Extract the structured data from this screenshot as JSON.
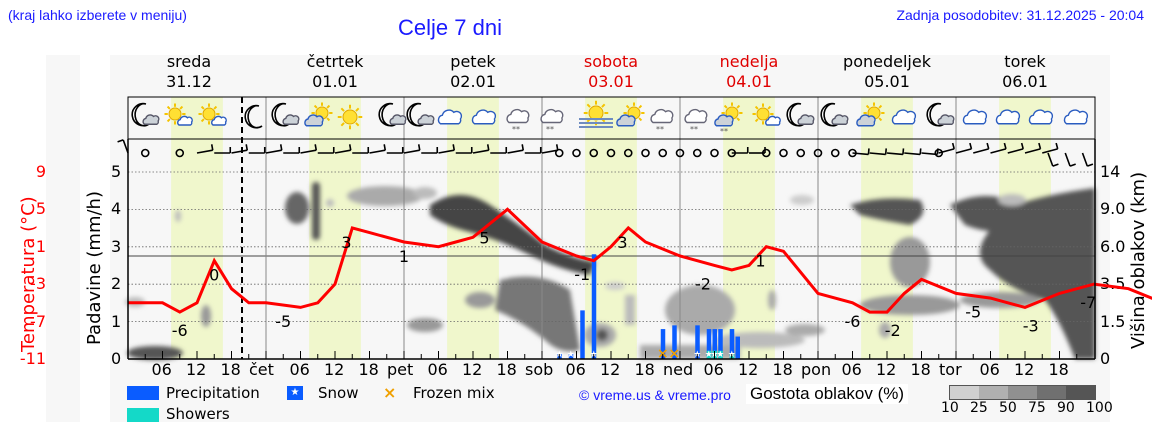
{
  "header": {
    "location_hint": "(kraj lahko izberete v meniju)",
    "title": "Celje 7 dni",
    "last_update": "Zadnja posodobitev: 31.12.2025 - 20:04"
  },
  "days": [
    {
      "name": "sreda",
      "date": "31.12",
      "weekend": false
    },
    {
      "name": "četrtek",
      "date": "01.01",
      "weekend": false
    },
    {
      "name": "petek",
      "date": "02.01",
      "weekend": false
    },
    {
      "name": "sobota",
      "date": "03.01",
      "weekend": true
    },
    {
      "name": "nedelja",
      "date": "04.01",
      "weekend": true
    },
    {
      "name": "ponedeljek",
      "date": "05.01",
      "weekend": false
    },
    {
      "name": "torek",
      "date": "06.01",
      "weekend": false
    }
  ],
  "axes": {
    "temperature_label": "Temperatura (°C)",
    "precip_label": "Padavine (mm/h)",
    "cloud_height_label": "Višina oblakov (km)",
    "temperature_ticks": [
      "9",
      "5",
      "1",
      "-3",
      "-7",
      "-11"
    ],
    "precip_ticks": [
      "5",
      "4",
      "3",
      "2",
      "1",
      "0"
    ],
    "cloud_height_ticks": [
      "14",
      "9.0",
      "6.0",
      "3.5",
      "1.5",
      "0"
    ],
    "x_ticks": [
      "06",
      "12",
      "18",
      "čet",
      "06",
      "12",
      "18",
      "pet",
      "06",
      "12",
      "18",
      "sob",
      "06",
      "12",
      "18",
      "ned",
      "06",
      "12",
      "18",
      "pon",
      "06",
      "12",
      "18",
      "tor",
      "06",
      "12",
      "18"
    ]
  },
  "weather_icons": [
    "moon-cloud",
    "sun-cloud",
    "sun-cloud",
    "moon",
    "moon-cloud",
    "cloud-sun",
    "sun",
    "moon-cloud",
    "moon-cloud",
    "cloud",
    "cloud",
    "cloud-snow",
    "cloud-snow",
    "sun-fog",
    "cloud-sun",
    "cloud-snow",
    "cloud-snow",
    "cloud-sun-snow",
    "sun-cloud",
    "moon-cloud",
    "moon-cloud",
    "cloud-sun",
    "cloud",
    "moon-cloud",
    "cloud",
    "cloud",
    "cloud",
    "cloud"
  ],
  "legend": {
    "precipitation": "Precipitation",
    "snow": "Snow",
    "frozen_mix": "Frozen mix",
    "showers": "Showers",
    "copyright": "© vreme.us & vreme.pro",
    "cloud_density_label": "Gostota oblakov (%)",
    "cloud_density_ticks": [
      "10",
      "25",
      "50",
      "75",
      "90",
      "100"
    ]
  },
  "colors": {
    "precipitation": "#0a5cff",
    "showers": "#14d9c8",
    "frozen_mix": "#f0a000",
    "temperature": "#ff0000",
    "daylight": "#f0f7cc",
    "header_link": "#1a1aff",
    "weekend": "#e00000"
  },
  "chart_data": {
    "type": "line",
    "title": "Celje 7 dni",
    "xlabel": "",
    "ylabel": "Temperatura (°C)",
    "y2label": "Padavine (mm/h)",
    "y3label": "Višina oblakov (km)",
    "ylim": [
      -11,
      9
    ],
    "y2lim": [
      0,
      5
    ],
    "x_unit": "hours from Wed 31.12 00:00",
    "series": [
      {
        "name": "Temperatura",
        "x": [
          0,
          6,
          9,
          12,
          15,
          18,
          21,
          24,
          30,
          33,
          36,
          39,
          42,
          48,
          54,
          57,
          60,
          63,
          66,
          72,
          78,
          81,
          84,
          87,
          90,
          96,
          102,
          105,
          108,
          111,
          114,
          120,
          126,
          129,
          132,
          135,
          138,
          144,
          150,
          153,
          156,
          162,
          168,
          174,
          180,
          186
        ],
        "values": [
          -5,
          -5,
          -6,
          -5,
          -0.5,
          -3.5,
          -5,
          -5,
          -5.5,
          -5,
          -3,
          3,
          2.5,
          1.5,
          1,
          1.5,
          2,
          3.5,
          5,
          1.5,
          0,
          -0.5,
          1,
          3,
          1.5,
          0,
          -1,
          -1.5,
          -1,
          1,
          0.5,
          -4,
          -5,
          -6,
          -6,
          -4,
          -2.5,
          -4,
          -4.5,
          -5,
          -5.5,
          -4,
          -3,
          -3.5,
          -5,
          -7
        ]
      },
      {
        "name": "Precipitation (mm/h)",
        "x": [
          75,
          77,
          79,
          81,
          93,
          95,
          99,
          101,
          102,
          103,
          105,
          106
        ],
        "values": [
          0.15,
          0.15,
          1.3,
          2.8,
          0.8,
          0.9,
          0.9,
          0.8,
          0.8,
          0.8,
          0.8,
          0.6
        ]
      }
    ],
    "temperature_labels": [
      {
        "x": 9,
        "value": "-6"
      },
      {
        "x": 15,
        "value": "0"
      },
      {
        "x": 27,
        "value": "-5"
      },
      {
        "x": 38,
        "value": "3"
      },
      {
        "x": 48,
        "value": "1"
      },
      {
        "x": 62,
        "value": "5"
      },
      {
        "x": 79,
        "value": "-1"
      },
      {
        "x": 86,
        "value": "3"
      },
      {
        "x": 100,
        "value": "-2"
      },
      {
        "x": 110,
        "value": "1"
      },
      {
        "x": 126,
        "value": "-6"
      },
      {
        "x": 133,
        "value": "-2"
      },
      {
        "x": 147,
        "value": "-5"
      },
      {
        "x": 157,
        "value": "-3"
      },
      {
        "x": 167,
        "value": "-7"
      }
    ],
    "legend": [
      "Precipitation",
      "Snow",
      "Frozen mix",
      "Showers"
    ],
    "legend_position": "bottom",
    "grid": true
  }
}
